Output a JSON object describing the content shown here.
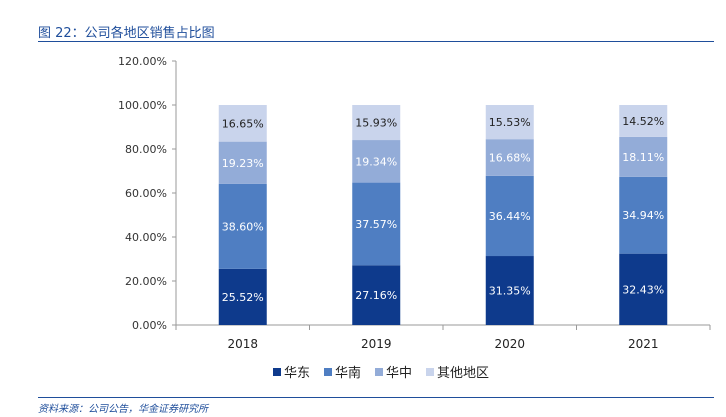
{
  "figure": {
    "title": "图 22：公司各地区销售占比图",
    "source": "资料来源：公司公告，华金证券研究所"
  },
  "chart_data": {
    "type": "bar",
    "stacked": true,
    "categories": [
      "2018",
      "2019",
      "2020",
      "2021"
    ],
    "ylim": [
      0,
      120
    ],
    "yticks": [
      "0.00%",
      "20.00%",
      "40.00%",
      "60.00%",
      "80.00%",
      "100.00%",
      "120.00%"
    ],
    "legend_position": "bottom",
    "grid": false,
    "series": [
      {
        "name": "华东",
        "color": "#0e3a8c",
        "label_color": "#ffffff",
        "values": [
          25.52,
          27.16,
          31.35,
          32.43
        ],
        "labels": [
          "25.52%",
          "27.16%",
          "31.35%",
          "32.43%"
        ]
      },
      {
        "name": "华南",
        "color": "#4f7ec2",
        "label_color": "#ffffff",
        "values": [
          38.6,
          37.57,
          36.44,
          34.94
        ],
        "labels": [
          "38.60%",
          "37.57%",
          "36.44%",
          "34.94%"
        ]
      },
      {
        "name": "华中",
        "color": "#93acd8",
        "label_color": "#ffffff",
        "values": [
          19.23,
          19.34,
          16.68,
          18.11
        ],
        "labels": [
          "19.23%",
          "19.34%",
          "16.68%",
          "18.11%"
        ]
      },
      {
        "name": "其他地区",
        "color": "#c9d4ec",
        "label_color": "#222222",
        "values": [
          16.65,
          15.93,
          15.53,
          14.52
        ],
        "labels": [
          "16.65%",
          "15.93%",
          "15.53%",
          "14.52%"
        ]
      }
    ]
  }
}
